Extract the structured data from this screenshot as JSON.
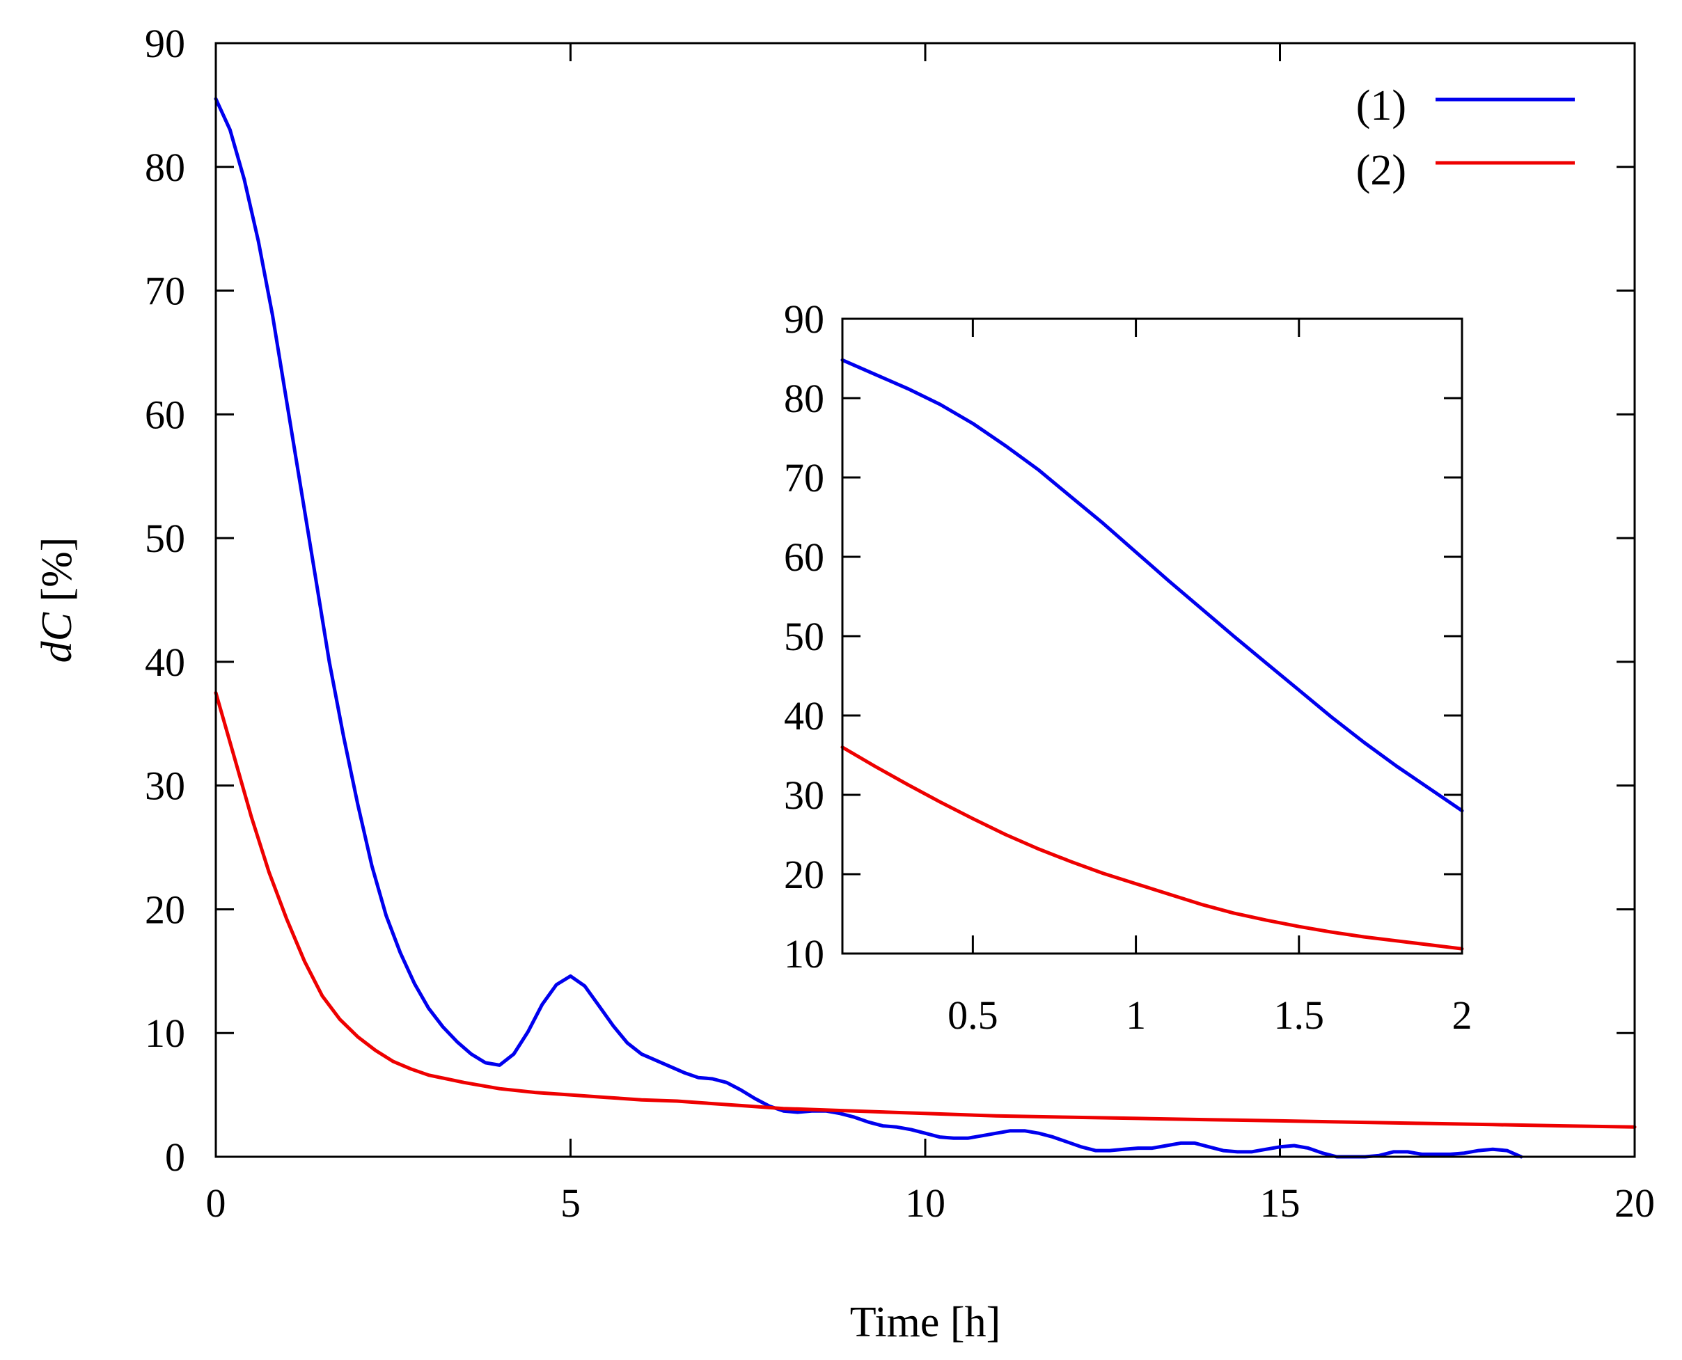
{
  "chart_data": [
    {
      "id": "main",
      "type": "line",
      "xlabel": "Time [h]",
      "ylabel_italic": "dC",
      "ylabel_rest": " [%]",
      "xlim": [
        0,
        20
      ],
      "ylim": [
        0,
        90
      ],
      "xticks": [
        0,
        5,
        10,
        15,
        20
      ],
      "yticks": [
        0,
        10,
        20,
        30,
        40,
        50,
        60,
        70,
        80,
        90
      ],
      "grid": false,
      "legend_position": "top-right",
      "series": [
        {
          "name": "(1)",
          "color": "#0000ee",
          "x": [
            0,
            0.2,
            0.4,
            0.6,
            0.8,
            1.0,
            1.2,
            1.4,
            1.6,
            1.8,
            2.0,
            2.2,
            2.4,
            2.6,
            2.8,
            3.0,
            3.2,
            3.4,
            3.6,
            3.8,
            4.0,
            4.2,
            4.4,
            4.6,
            4.8,
            5.0,
            5.2,
            5.4,
            5.6,
            5.8,
            6.0,
            6.2,
            6.4,
            6.6,
            6.8,
            7.0,
            7.2,
            7.4,
            7.6,
            7.8,
            8.0,
            8.2,
            8.4,
            8.6,
            8.8,
            9.0,
            9.2,
            9.4,
            9.6,
            9.8,
            10.0,
            10.2,
            10.4,
            10.6,
            10.8,
            11.0,
            11.2,
            11.4,
            11.6,
            11.8,
            12.0,
            12.2,
            12.4,
            12.6,
            12.8,
            13.0,
            13.2,
            13.4,
            13.6,
            13.8,
            14.0,
            14.2,
            14.4,
            14.6,
            14.8,
            15.0,
            15.2,
            15.4,
            15.6,
            15.8,
            16.0,
            16.2,
            16.4,
            16.6,
            16.8,
            17.0,
            17.2,
            17.4,
            17.6,
            17.8,
            18.0,
            18.2,
            18.4
          ],
          "values": [
            85.5,
            83,
            79,
            74,
            68,
            61,
            54,
            47,
            40,
            34,
            28.5,
            23.5,
            19.5,
            16.5,
            14,
            12,
            10.5,
            9.3,
            8.3,
            7.6,
            7.4,
            8.3,
            10.1,
            12.3,
            13.9,
            14.6,
            13.8,
            12.2,
            10.6,
            9.2,
            8.3,
            7.8,
            7.3,
            6.8,
            6.4,
            6.3,
            6,
            5.4,
            4.7,
            4.1,
            3.7,
            3.6,
            3.7,
            3.7,
            3.5,
            3.2,
            2.8,
            2.5,
            2.4,
            2.2,
            1.9,
            1.6,
            1.5,
            1.5,
            1.7,
            1.9,
            2.1,
            2.1,
            1.9,
            1.6,
            1.2,
            0.8,
            0.5,
            0.5,
            0.6,
            0.7,
            0.7,
            0.9,
            1.1,
            1.1,
            0.8,
            0.5,
            0.4,
            0.4,
            0.6,
            0.8,
            0.9,
            0.7,
            0.3,
            0.0,
            -0.2,
            -0.3,
            0.1,
            0.4,
            0.4,
            0.2,
            0.2,
            0.2,
            0.3,
            0.5,
            0.6,
            0.5,
            0.0
          ]
        },
        {
          "name": "(2)",
          "color": "#ee0000",
          "x": [
            0,
            0.25,
            0.5,
            0.75,
            1.0,
            1.25,
            1.5,
            1.75,
            2.0,
            2.25,
            2.5,
            2.75,
            3.0,
            3.5,
            4.0,
            4.5,
            5.0,
            5.5,
            6.0,
            6.5,
            7.0,
            7.5,
            8.0,
            9.0,
            10.0,
            11.0,
            12.0,
            13.0,
            14.0,
            15.0,
            16.0,
            17.0,
            18.0,
            19.0,
            20.0
          ],
          "values": [
            37.5,
            32.5,
            27.5,
            23,
            19.2,
            15.8,
            13,
            11.1,
            9.7,
            8.6,
            7.7,
            7.1,
            6.6,
            6,
            5.5,
            5.2,
            5,
            4.8,
            4.6,
            4.5,
            4.3,
            4.1,
            3.9,
            3.7,
            3.5,
            3.3,
            3.2,
            3.1,
            3,
            2.9,
            2.8,
            2.7,
            2.6,
            2.5,
            2.4
          ]
        }
      ]
    },
    {
      "id": "inset",
      "type": "line",
      "xlabel": "",
      "ylabel": "",
      "xlim": [
        0.1,
        2
      ],
      "ylim": [
        10,
        90
      ],
      "xticks": [
        0.5,
        1,
        1.5,
        2
      ],
      "xtick_labels": [
        "0.5",
        "1",
        "1.5",
        "2"
      ],
      "yticks": [
        10,
        20,
        30,
        40,
        50,
        60,
        70,
        80,
        90
      ],
      "grid": false,
      "series": [
        {
          "name": "(1)",
          "color": "#0000ee",
          "x": [
            0.1,
            0.2,
            0.3,
            0.4,
            0.5,
            0.6,
            0.7,
            0.8,
            0.9,
            1.0,
            1.1,
            1.2,
            1.3,
            1.4,
            1.5,
            1.6,
            1.7,
            1.8,
            1.9,
            2.0
          ],
          "values": [
            84.8,
            83,
            81.2,
            79.2,
            76.8,
            74,
            71,
            67.6,
            64.2,
            60.6,
            57,
            53.5,
            50,
            46.6,
            43.2,
            39.8,
            36.6,
            33.6,
            30.8,
            28
          ]
        },
        {
          "name": "(2)",
          "color": "#ee0000",
          "x": [
            0.1,
            0.2,
            0.3,
            0.4,
            0.5,
            0.6,
            0.7,
            0.8,
            0.9,
            1.0,
            1.1,
            1.2,
            1.3,
            1.4,
            1.5,
            1.6,
            1.7,
            1.8,
            1.9,
            2.0
          ],
          "values": [
            36,
            33.6,
            31.3,
            29.1,
            27,
            25,
            23.2,
            21.6,
            20.1,
            18.8,
            17.5,
            16.2,
            15.1,
            14.2,
            13.4,
            12.7,
            12.1,
            11.6,
            11.1,
            10.6
          ]
        }
      ]
    }
  ]
}
